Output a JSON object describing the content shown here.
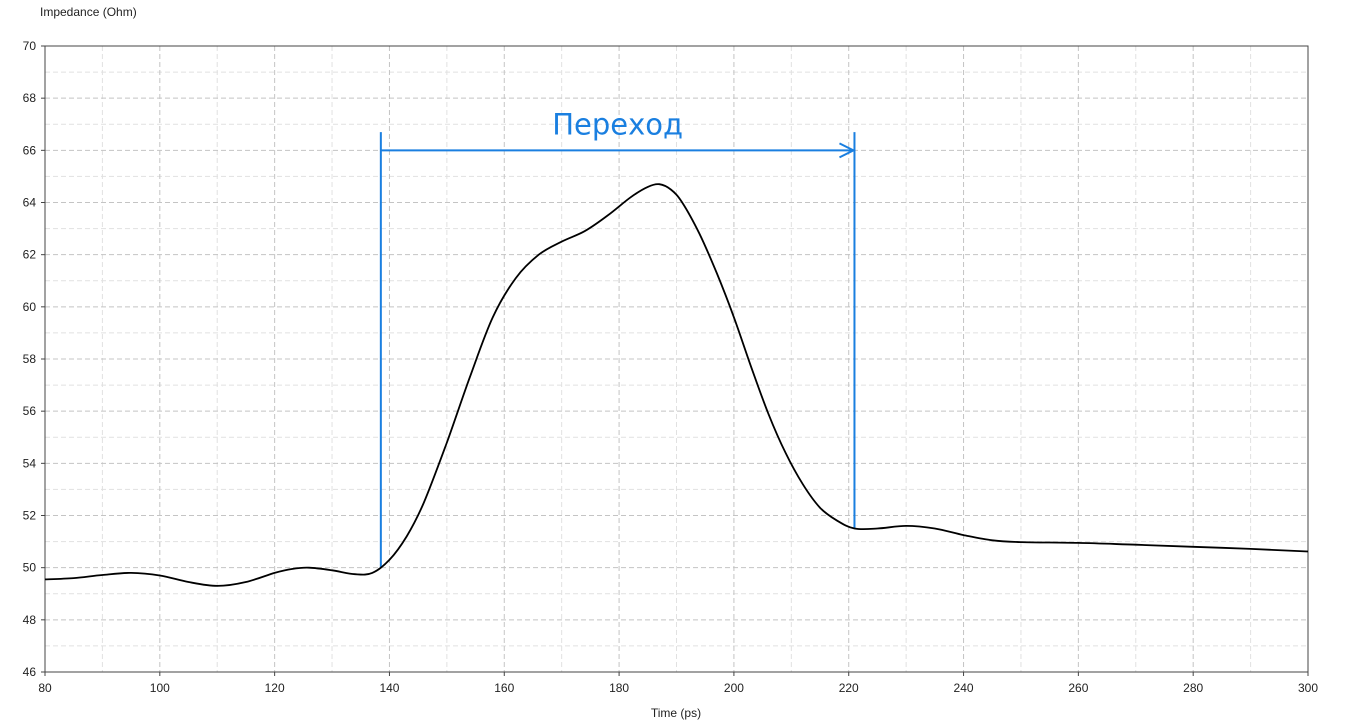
{
  "chart_data": {
    "type": "line",
    "title": "",
    "xlabel": "Time (ps)",
    "ylabel": "Impedance (Ohm)",
    "xlim": [
      80,
      300
    ],
    "ylim": [
      46,
      70
    ],
    "x_ticks": [
      80,
      100,
      120,
      140,
      160,
      180,
      200,
      220,
      240,
      260,
      280,
      300
    ],
    "y_ticks": [
      46,
      48,
      50,
      52,
      54,
      56,
      58,
      60,
      62,
      64,
      66,
      68,
      70
    ],
    "grid": true,
    "legend": "none",
    "colors": {
      "line": "#000000",
      "annotation": "#1a7fe0",
      "grid": "#c4c4c4"
    },
    "series": [
      {
        "x": [
          80,
          85,
          90,
          95,
          100,
          105,
          110,
          115,
          120,
          123,
          126,
          130,
          134,
          137,
          140,
          143,
          146,
          150,
          154,
          158,
          162,
          166,
          170,
          174,
          178,
          182,
          185,
          187,
          189,
          191,
          194,
          197,
          200,
          203,
          206,
          209,
          212,
          215,
          218,
          221,
          225,
          230,
          235,
          240,
          245,
          250,
          260,
          270,
          280,
          290,
          300
        ],
        "y": [
          49.55,
          49.6,
          49.72,
          49.8,
          49.7,
          49.45,
          49.3,
          49.45,
          49.8,
          49.95,
          50.0,
          49.9,
          49.75,
          49.8,
          50.3,
          51.2,
          52.5,
          54.8,
          57.3,
          59.6,
          61.1,
          62.0,
          62.5,
          62.9,
          63.5,
          64.2,
          64.6,
          64.7,
          64.5,
          64.0,
          62.8,
          61.3,
          59.6,
          57.7,
          55.9,
          54.4,
          53.2,
          52.3,
          51.8,
          51.5,
          51.5,
          51.6,
          51.5,
          51.25,
          51.05,
          50.98,
          50.95,
          50.88,
          50.8,
          50.72,
          50.62
        ]
      }
    ],
    "annotations": [
      {
        "type": "span-arrow",
        "label": "Переход",
        "x_start": 138.5,
        "x_end": 221,
        "y_arrow": 66,
        "y_top": 66.7
      }
    ]
  }
}
